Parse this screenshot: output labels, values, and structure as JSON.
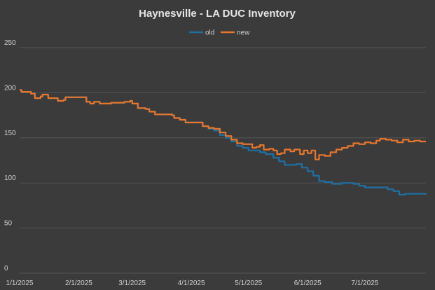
{
  "chart_data": {
    "type": "line",
    "title": "Haynesville - LA DUC Inventory",
    "xlabel": "",
    "ylabel": "",
    "ylim": [
      0,
      250
    ],
    "y_ticks": [
      0,
      50,
      100,
      150,
      200,
      250
    ],
    "x_range": [
      "2025-01-01",
      "2025-08-02"
    ],
    "x_ticks": [
      "1/1/2025",
      "2/1/2025",
      "3/1/2025",
      "4/1/2025",
      "5/1/2025",
      "6/1/2025",
      "7/1/2025"
    ],
    "grid": true,
    "legend_position": "top-center",
    "series": [
      {
        "name": "old",
        "color": "#1f6fa3",
        "points": [
          [
            "2025-01-01",
            203
          ],
          [
            "2025-01-02",
            201
          ],
          [
            "2025-01-05",
            201
          ],
          [
            "2025-01-07",
            199
          ],
          [
            "2025-01-09",
            194
          ],
          [
            "2025-01-12",
            196
          ],
          [
            "2025-01-13",
            198
          ],
          [
            "2025-01-16",
            194
          ],
          [
            "2025-01-21",
            191
          ],
          [
            "2025-01-24",
            192
          ],
          [
            "2025-01-25",
            195
          ],
          [
            "2025-02-01",
            195
          ],
          [
            "2025-02-05",
            190
          ],
          [
            "2025-02-07",
            188
          ],
          [
            "2025-02-09",
            190
          ],
          [
            "2025-02-12",
            188
          ],
          [
            "2025-02-18",
            189
          ],
          [
            "2025-02-23",
            189
          ],
          [
            "2025-02-25",
            190
          ],
          [
            "2025-02-28",
            191
          ],
          [
            "2025-03-01",
            188
          ],
          [
            "2025-03-04",
            183
          ],
          [
            "2025-03-08",
            182
          ],
          [
            "2025-03-10",
            179
          ],
          [
            "2025-03-13",
            176
          ],
          [
            "2025-03-22",
            175
          ],
          [
            "2025-03-23",
            172
          ],
          [
            "2025-03-26",
            170
          ],
          [
            "2025-03-29",
            167
          ],
          [
            "2025-04-05",
            167
          ],
          [
            "2025-04-07",
            163
          ],
          [
            "2025-04-10",
            160
          ],
          [
            "2025-04-13",
            158
          ],
          [
            "2025-04-16",
            153
          ],
          [
            "2025-04-19",
            150
          ],
          [
            "2025-04-22",
            146
          ],
          [
            "2025-04-25",
            141
          ],
          [
            "2025-04-28",
            139
          ],
          [
            "2025-05-01",
            136
          ],
          [
            "2025-05-07",
            134
          ],
          [
            "2025-05-10",
            132
          ],
          [
            "2025-05-14",
            128
          ],
          [
            "2025-05-17",
            124
          ],
          [
            "2025-05-20",
            120
          ],
          [
            "2025-05-26",
            121
          ],
          [
            "2025-05-29",
            117
          ],
          [
            "2025-06-01",
            113
          ],
          [
            "2025-06-04",
            108
          ],
          [
            "2025-06-07",
            102
          ],
          [
            "2025-06-10",
            101
          ],
          [
            "2025-06-14",
            99
          ],
          [
            "2025-06-19",
            100
          ],
          [
            "2025-06-23",
            100
          ],
          [
            "2025-06-25",
            99
          ],
          [
            "2025-06-28",
            97
          ],
          [
            "2025-07-01",
            95
          ],
          [
            "2025-07-08",
            95
          ],
          [
            "2025-07-13",
            93
          ],
          [
            "2025-07-16",
            91
          ],
          [
            "2025-07-19",
            87
          ],
          [
            "2025-07-22",
            88
          ],
          [
            "2025-07-27",
            88
          ],
          [
            "2025-08-02",
            87
          ]
        ]
      },
      {
        "name": "new",
        "color": "#e8762d",
        "points": [
          [
            "2025-01-01",
            203
          ],
          [
            "2025-01-02",
            201
          ],
          [
            "2025-01-05",
            201
          ],
          [
            "2025-01-07",
            199
          ],
          [
            "2025-01-09",
            194
          ],
          [
            "2025-01-12",
            196
          ],
          [
            "2025-01-13",
            198
          ],
          [
            "2025-01-16",
            194
          ],
          [
            "2025-01-21",
            191
          ],
          [
            "2025-01-24",
            192
          ],
          [
            "2025-01-25",
            195
          ],
          [
            "2025-02-01",
            195
          ],
          [
            "2025-02-05",
            190
          ],
          [
            "2025-02-07",
            188
          ],
          [
            "2025-02-09",
            190
          ],
          [
            "2025-02-12",
            188
          ],
          [
            "2025-02-18",
            189
          ],
          [
            "2025-02-23",
            189
          ],
          [
            "2025-02-25",
            190
          ],
          [
            "2025-02-28",
            191
          ],
          [
            "2025-03-01",
            188
          ],
          [
            "2025-03-04",
            183
          ],
          [
            "2025-03-08",
            182
          ],
          [
            "2025-03-10",
            179
          ],
          [
            "2025-03-13",
            176
          ],
          [
            "2025-03-22",
            175
          ],
          [
            "2025-03-23",
            172
          ],
          [
            "2025-03-26",
            170
          ],
          [
            "2025-03-29",
            167
          ],
          [
            "2025-04-05",
            167
          ],
          [
            "2025-04-07",
            163
          ],
          [
            "2025-04-10",
            161
          ],
          [
            "2025-04-13",
            160
          ],
          [
            "2025-04-16",
            156
          ],
          [
            "2025-04-19",
            152
          ],
          [
            "2025-04-22",
            148
          ],
          [
            "2025-04-25",
            144
          ],
          [
            "2025-04-28",
            143
          ],
          [
            "2025-05-01",
            143
          ],
          [
            "2025-05-03",
            139
          ],
          [
            "2025-05-05",
            140
          ],
          [
            "2025-05-07",
            142
          ],
          [
            "2025-05-09",
            137
          ],
          [
            "2025-05-12",
            138
          ],
          [
            "2025-05-14",
            136
          ],
          [
            "2025-05-16",
            132
          ],
          [
            "2025-05-18",
            133
          ],
          [
            "2025-05-20",
            137
          ],
          [
            "2025-05-23",
            135
          ],
          [
            "2025-05-25",
            137
          ],
          [
            "2025-05-28",
            132
          ],
          [
            "2025-05-30",
            136
          ],
          [
            "2025-06-01",
            133
          ],
          [
            "2025-06-03",
            136
          ],
          [
            "2025-06-05",
            126
          ],
          [
            "2025-06-07",
            131
          ],
          [
            "2025-06-10",
            130
          ],
          [
            "2025-06-13",
            134
          ],
          [
            "2025-06-16",
            137
          ],
          [
            "2025-06-19",
            139
          ],
          [
            "2025-06-22",
            141
          ],
          [
            "2025-06-25",
            144
          ],
          [
            "2025-06-28",
            143
          ],
          [
            "2025-07-01",
            145
          ],
          [
            "2025-07-04",
            144
          ],
          [
            "2025-07-07",
            147
          ],
          [
            "2025-07-09",
            149
          ],
          [
            "2025-07-12",
            148
          ],
          [
            "2025-07-15",
            147
          ],
          [
            "2025-07-18",
            145
          ],
          [
            "2025-07-21",
            148
          ],
          [
            "2025-07-24",
            146
          ],
          [
            "2025-07-27",
            147
          ],
          [
            "2025-07-30",
            146
          ],
          [
            "2025-08-02",
            146
          ]
        ]
      }
    ]
  }
}
